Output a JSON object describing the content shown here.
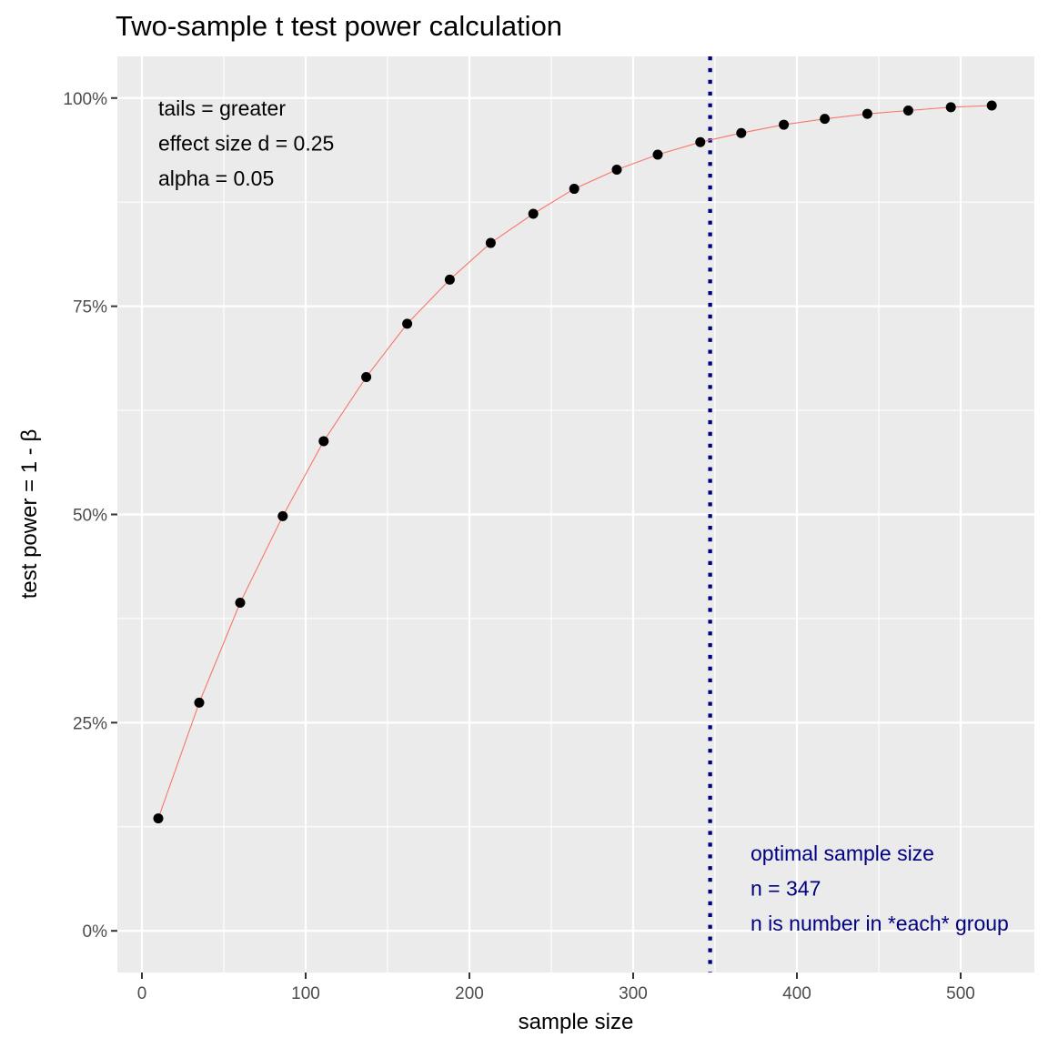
{
  "chart_data": {
    "type": "line",
    "title": "Two-sample t test power calculation",
    "xlabel": "sample size",
    "ylabel": "test power = 1 - β",
    "xlim": [
      -15,
      545
    ],
    "ylim": [
      -0.05,
      1.05
    ],
    "x_ticks": [
      0,
      100,
      200,
      300,
      400,
      500
    ],
    "x_tick_labels": [
      "0",
      "100",
      "200",
      "300",
      "400",
      "500"
    ],
    "y_ticks": [
      0,
      0.25,
      0.5,
      0.75,
      1.0
    ],
    "y_tick_labels": [
      "0%",
      "25%",
      "50%",
      "75%",
      "100%"
    ],
    "grid": true,
    "series": [
      {
        "color": "#f8766d",
        "x": [
          10,
          35,
          60,
          86,
          111,
          137,
          162,
          188,
          213,
          239,
          264,
          290,
          315,
          341,
          366,
          392,
          417,
          443,
          468,
          494,
          519
        ],
        "y": [
          0.135,
          0.274,
          0.394,
          0.498,
          0.588,
          0.665,
          0.729,
          0.782,
          0.826,
          0.861,
          0.891,
          0.914,
          0.932,
          0.947,
          0.958,
          0.968,
          0.975,
          0.981,
          0.985,
          0.989,
          0.991
        ]
      }
    ],
    "vline": {
      "x": 347,
      "color": "#000080",
      "style": "dotted"
    },
    "annotations_top_left": {
      "color": "#000000",
      "lines": [
        "tails = greater",
        "effect size d = 0.25",
        "alpha = 0.05"
      ]
    },
    "annotations_bottom_right": {
      "color": "#000080",
      "lines": [
        "optimal sample size",
        "n = 347",
        "n is number in *each* group"
      ]
    }
  }
}
